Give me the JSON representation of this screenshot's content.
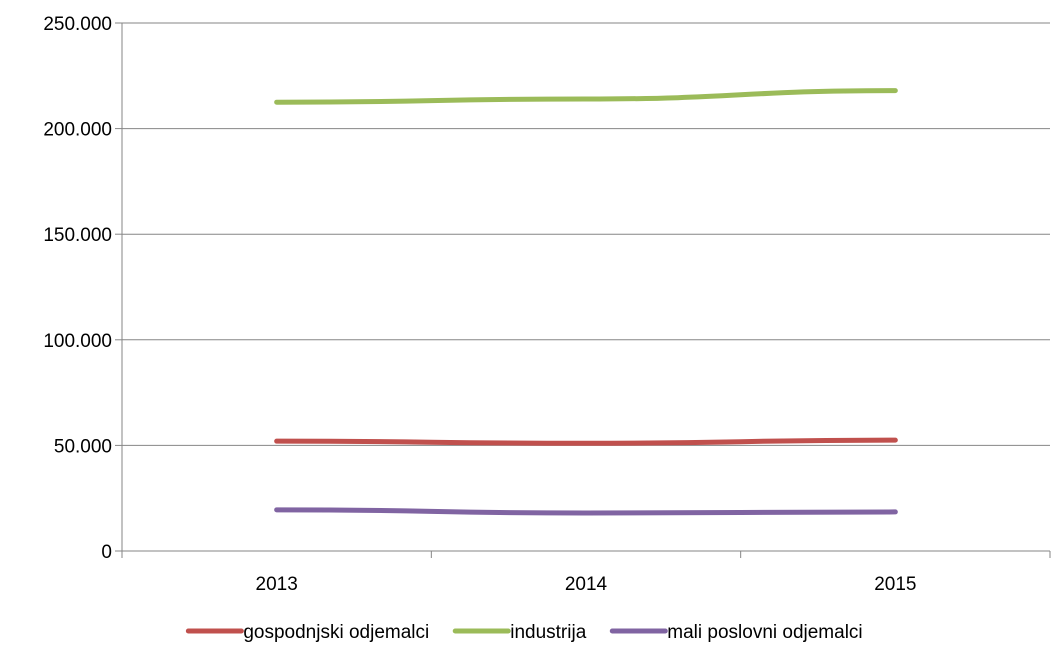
{
  "chart_data": {
    "type": "line",
    "title": "",
    "xlabel": "",
    "ylabel": "",
    "categories": [
      "2013",
      "2014",
      "2015"
    ],
    "ylim": [
      0,
      250000
    ],
    "yticks": [
      0,
      50000,
      100000,
      150000,
      200000,
      250000
    ],
    "ytick_labels": [
      "0",
      "50.000",
      "100.000",
      "150.000",
      "200.000",
      "250.000"
    ],
    "grid": true,
    "legend_position": "bottom",
    "series": [
      {
        "name": "gospodnjski odjemalci",
        "color": "#C0504D",
        "values": [
          52000,
          51000,
          52500
        ]
      },
      {
        "name": "industrija",
        "color": "#9BBB59",
        "values": [
          212500,
          214000,
          218000
        ]
      },
      {
        "name": "mali poslovni odjemalci",
        "color": "#8064A2",
        "values": [
          19500,
          18000,
          18500
        ]
      }
    ]
  }
}
